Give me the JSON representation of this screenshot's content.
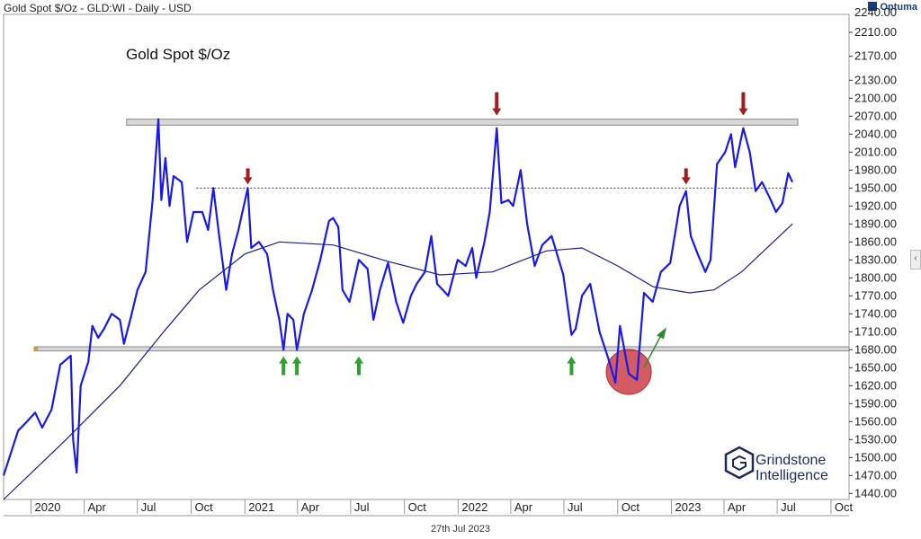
{
  "header": {
    "title": "Gold Spot $/Oz - GLD:WI - Daily - USD"
  },
  "brand": {
    "name": "Optuma"
  },
  "footer": {
    "date": "27th Jul 2023"
  },
  "watermark": {
    "line1": "Grindstone",
    "line2": "Intelligence"
  },
  "colors": {
    "price": "#1a1ae6",
    "ma": "#1c1c8a",
    "down_arrow": "#a01e1e",
    "up_arrow": "#2ea02e",
    "highlight": "#c8323c"
  },
  "chart_data": {
    "type": "line",
    "title": "Gold Spot $/Oz",
    "xlabel": "",
    "ylabel": "",
    "ylim": [
      1430,
      2240
    ],
    "y_ticks": [
      1440,
      1470,
      1500,
      1530,
      1560,
      1590,
      1620,
      1650,
      1680,
      1710,
      1740,
      1770,
      1800,
      1830,
      1860,
      1890,
      1920,
      1950,
      1980,
      2010,
      2040,
      2070,
      2100,
      2130,
      2170,
      2210
    ],
    "y_tick_labels": [
      "1440.00",
      "1470.00",
      "1500.00",
      "1530.00",
      "1560.00",
      "1590.00",
      "1620.00",
      "1650.00",
      "1680.00",
      "1710.00",
      "1740.00",
      "1770.00",
      "1800.00",
      "1830.00",
      "1860.00",
      "1890.00",
      "1920.00",
      "1950.00",
      "1980.00",
      "2010.00",
      "2040.00",
      "2070.00",
      "2100.00",
      "2130.00",
      "2170.00",
      "2210.00"
    ],
    "x_ticks": [
      {
        "label": "2020",
        "x": "2020-01-01"
      },
      {
        "label": "Apr",
        "x": "2020-04-01"
      },
      {
        "label": "Jul",
        "x": "2020-07-01"
      },
      {
        "label": "Oct",
        "x": "2020-10-01"
      },
      {
        "label": "2021",
        "x": "2021-01-01"
      },
      {
        "label": "Apr",
        "x": "2021-04-01"
      },
      {
        "label": "Jul",
        "x": "2021-07-01"
      },
      {
        "label": "Oct",
        "x": "2021-10-01"
      },
      {
        "label": "2022",
        "x": "2022-01-01"
      },
      {
        "label": "Apr",
        "x": "2022-04-01"
      },
      {
        "label": "Jul",
        "x": "2022-07-01"
      },
      {
        "label": "Oct",
        "x": "2022-10-01"
      },
      {
        "label": "2023",
        "x": "2023-01-01"
      },
      {
        "label": "Apr",
        "x": "2023-04-01"
      },
      {
        "label": "Jul",
        "x": "2023-07-01"
      },
      {
        "label": "Oct",
        "x": "2023-10-01"
      }
    ],
    "series": [
      {
        "role": "price",
        "points": [
          [
            "2019-11-15",
            1470
          ],
          [
            "2019-11-25",
            1500
          ],
          [
            "2019-12-10",
            1545
          ],
          [
            "2019-12-25",
            1560
          ],
          [
            "2020-01-08",
            1575
          ],
          [
            "2020-01-20",
            1550
          ],
          [
            "2020-02-05",
            1580
          ],
          [
            "2020-02-20",
            1655
          ],
          [
            "2020-03-09",
            1670
          ],
          [
            "2020-03-13",
            1530
          ],
          [
            "2020-03-19",
            1475
          ],
          [
            "2020-03-26",
            1620
          ],
          [
            "2020-04-08",
            1660
          ],
          [
            "2020-04-15",
            1720
          ],
          [
            "2020-04-25",
            1700
          ],
          [
            "2020-05-05",
            1715
          ],
          [
            "2020-05-18",
            1740
          ],
          [
            "2020-06-01",
            1730
          ],
          [
            "2020-06-08",
            1690
          ],
          [
            "2020-06-20",
            1735
          ],
          [
            "2020-07-01",
            1780
          ],
          [
            "2020-07-15",
            1810
          ],
          [
            "2020-07-27",
            1930
          ],
          [
            "2020-08-06",
            2065
          ],
          [
            "2020-08-11",
            1930
          ],
          [
            "2020-08-18",
            2000
          ],
          [
            "2020-08-25",
            1920
          ],
          [
            "2020-09-01",
            1970
          ],
          [
            "2020-09-15",
            1960
          ],
          [
            "2020-09-24",
            1860
          ],
          [
            "2020-10-05",
            1910
          ],
          [
            "2020-10-20",
            1910
          ],
          [
            "2020-10-30",
            1880
          ],
          [
            "2020-11-08",
            1950
          ],
          [
            "2020-11-18",
            1870
          ],
          [
            "2020-11-30",
            1780
          ],
          [
            "2020-12-10",
            1840
          ],
          [
            "2020-12-21",
            1880
          ],
          [
            "2021-01-06",
            1950
          ],
          [
            "2021-01-12",
            1850
          ],
          [
            "2021-01-25",
            1860
          ],
          [
            "2021-02-08",
            1840
          ],
          [
            "2021-02-18",
            1780
          ],
          [
            "2021-03-01",
            1730
          ],
          [
            "2021-03-08",
            1680
          ],
          [
            "2021-03-15",
            1740
          ],
          [
            "2021-03-25",
            1730
          ],
          [
            "2021-03-31",
            1680
          ],
          [
            "2021-04-12",
            1740
          ],
          [
            "2021-04-26",
            1780
          ],
          [
            "2021-05-10",
            1830
          ],
          [
            "2021-05-25",
            1895
          ],
          [
            "2021-06-01",
            1900
          ],
          [
            "2021-06-10",
            1885
          ],
          [
            "2021-06-17",
            1780
          ],
          [
            "2021-06-29",
            1760
          ],
          [
            "2021-07-15",
            1830
          ],
          [
            "2021-07-30",
            1815
          ],
          [
            "2021-08-09",
            1730
          ],
          [
            "2021-08-20",
            1780
          ],
          [
            "2021-09-03",
            1825
          ],
          [
            "2021-09-17",
            1760
          ],
          [
            "2021-09-29",
            1725
          ],
          [
            "2021-10-12",
            1770
          ],
          [
            "2021-10-22",
            1790
          ],
          [
            "2021-11-05",
            1810
          ],
          [
            "2021-11-16",
            1870
          ],
          [
            "2021-11-26",
            1790
          ],
          [
            "2021-12-15",
            1770
          ],
          [
            "2021-12-31",
            1830
          ],
          [
            "2022-01-14",
            1820
          ],
          [
            "2022-01-25",
            1850
          ],
          [
            "2022-02-01",
            1800
          ],
          [
            "2022-02-15",
            1860
          ],
          [
            "2022-02-24",
            1910
          ],
          [
            "2022-03-08",
            2050
          ],
          [
            "2022-03-16",
            1925
          ],
          [
            "2022-03-28",
            1930
          ],
          [
            "2022-04-05",
            1920
          ],
          [
            "2022-04-18",
            1980
          ],
          [
            "2022-04-29",
            1890
          ],
          [
            "2022-05-12",
            1820
          ],
          [
            "2022-05-25",
            1855
          ],
          [
            "2022-06-10",
            1870
          ],
          [
            "2022-06-30",
            1805
          ],
          [
            "2022-07-14",
            1705
          ],
          [
            "2022-07-21",
            1715
          ],
          [
            "2022-08-01",
            1770
          ],
          [
            "2022-08-15",
            1790
          ],
          [
            "2022-08-31",
            1710
          ],
          [
            "2022-09-15",
            1665
          ],
          [
            "2022-09-27",
            1625
          ],
          [
            "2022-10-05",
            1720
          ],
          [
            "2022-10-20",
            1640
          ],
          [
            "2022-11-03",
            1630
          ],
          [
            "2022-11-15",
            1775
          ],
          [
            "2022-11-30",
            1760
          ],
          [
            "2022-12-14",
            1810
          ],
          [
            "2022-12-30",
            1825
          ],
          [
            "2023-01-15",
            1920
          ],
          [
            "2023-01-26",
            1945
          ],
          [
            "2023-02-03",
            1870
          ],
          [
            "2023-02-15",
            1840
          ],
          [
            "2023-02-28",
            1810
          ],
          [
            "2023-03-09",
            1830
          ],
          [
            "2023-03-20",
            1990
          ],
          [
            "2023-04-03",
            2010
          ],
          [
            "2023-04-13",
            2040
          ],
          [
            "2023-04-20",
            1985
          ],
          [
            "2023-05-04",
            2050
          ],
          [
            "2023-05-15",
            2010
          ],
          [
            "2023-05-25",
            1945
          ],
          [
            "2023-06-05",
            1960
          ],
          [
            "2023-06-20",
            1930
          ],
          [
            "2023-06-29",
            1910
          ],
          [
            "2023-07-10",
            1925
          ],
          [
            "2023-07-20",
            1975
          ],
          [
            "2023-07-27",
            1960
          ]
        ]
      },
      {
        "role": "moving-average",
        "points": [
          [
            "2019-11-15",
            1430
          ],
          [
            "2020-03-01",
            1530
          ],
          [
            "2020-06-01",
            1620
          ],
          [
            "2020-08-15",
            1710
          ],
          [
            "2020-10-15",
            1780
          ],
          [
            "2021-01-01",
            1840
          ],
          [
            "2021-03-01",
            1860
          ],
          [
            "2021-06-01",
            1855
          ],
          [
            "2021-09-01",
            1828
          ],
          [
            "2021-12-01",
            1805
          ],
          [
            "2022-03-01",
            1810
          ],
          [
            "2022-06-01",
            1845
          ],
          [
            "2022-08-01",
            1850
          ],
          [
            "2022-10-01",
            1820
          ],
          [
            "2022-12-01",
            1785
          ],
          [
            "2023-02-01",
            1775
          ],
          [
            "2023-03-15",
            1780
          ],
          [
            "2023-05-01",
            1810
          ],
          [
            "2023-07-27",
            1890
          ]
        ]
      }
    ],
    "resistance_band": [
      2055,
      2065
    ],
    "support_band": [
      1678,
      1685
    ],
    "dotted_level": 1950,
    "up_arrows": [
      "2021-03-08",
      "2021-03-31",
      "2021-07-15",
      "2022-07-14"
    ],
    "down_arrows_large": [
      "2022-03-08",
      "2023-05-04"
    ],
    "down_arrows_small": [
      "2021-01-06",
      "2023-01-26"
    ],
    "grid": false,
    "legend": "none"
  }
}
